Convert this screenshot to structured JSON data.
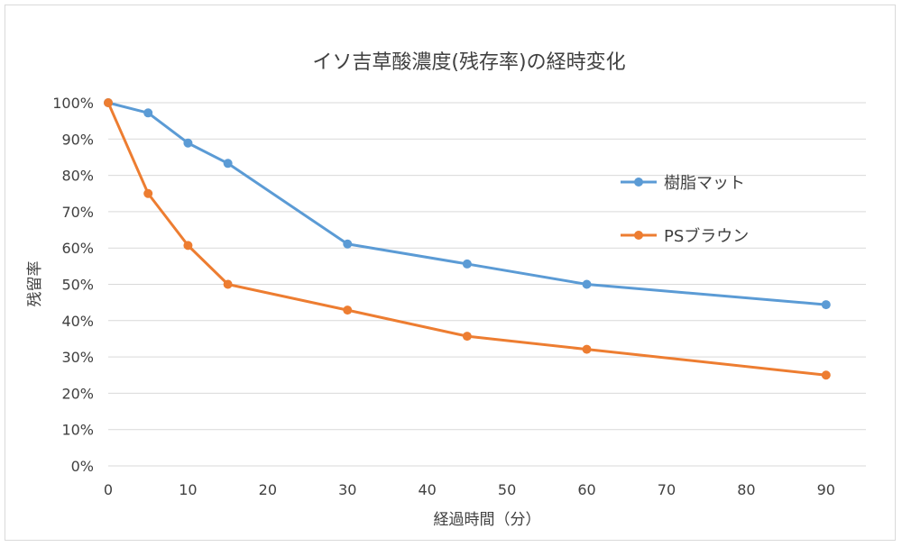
{
  "chart_data": {
    "type": "line",
    "title": "イソ吉草酸濃度(残存率)の経時変化",
    "xlabel": "経過時間（分）",
    "ylabel": "残留率",
    "x": [
      0,
      5,
      10,
      15,
      30,
      45,
      60,
      90
    ],
    "xlim": [
      0,
      95
    ],
    "ylim": [
      0,
      100
    ],
    "x_ticks": [
      "0",
      "10",
      "20",
      "30",
      "40",
      "50",
      "60",
      "70",
      "80",
      "90"
    ],
    "y_ticks": [
      "0%",
      "10%",
      "20%",
      "30%",
      "40%",
      "50%",
      "60%",
      "70%",
      "80%",
      "90%",
      "100%"
    ],
    "grid": "horizontal",
    "legend_position": "right",
    "series": [
      {
        "name": "樹脂マット",
        "color": "#5b9bd5",
        "values": [
          100,
          97.2,
          88.9,
          83.3,
          61.1,
          55.6,
          50.0,
          44.4
        ]
      },
      {
        "name": "PSブラウン",
        "color": "#ed7d31",
        "values": [
          100,
          75.0,
          60.7,
          50.0,
          42.9,
          35.7,
          32.1,
          25.0
        ]
      }
    ]
  }
}
